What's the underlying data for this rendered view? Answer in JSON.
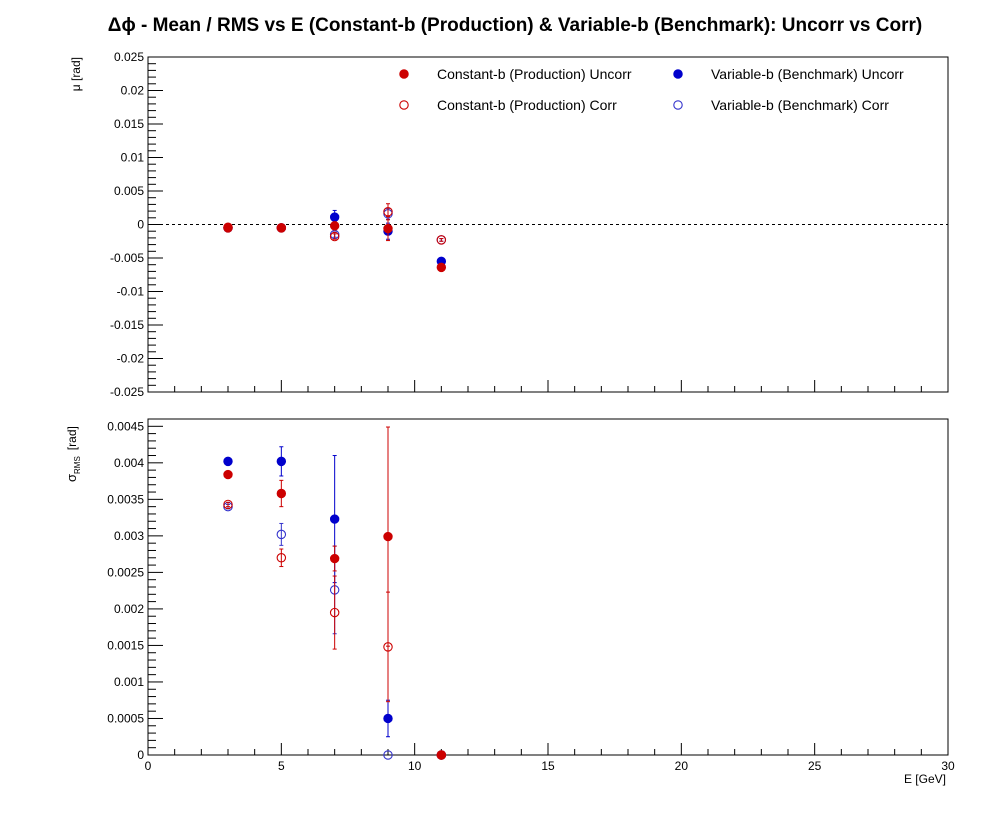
{
  "title": "Δϕ  -  Mean / RMS vs E  (Constant-b (Production) & Variable-b (Benchmark): Uncorr vs Corr)",
  "colors": {
    "red": "#cc0000",
    "blue": "#0000cc",
    "corr_blue": "#3333cc"
  },
  "chart_data": [
    {
      "type": "scatter",
      "panel": "top",
      "ylabel": "μ  [rad]",
      "xlim": [
        0,
        30
      ],
      "ylim": [
        -0.025,
        0.025
      ],
      "ytick_labels": [
        "-0.025",
        "-0.02",
        "-0.015",
        "-0.01",
        "-0.005",
        "0",
        "0.005",
        "0.01",
        "0.015",
        "0.02",
        "0.025"
      ],
      "reference_line_y": 0,
      "legend": {
        "placement": "top",
        "entries": [
          {
            "label": "Constant-b (Production) Uncorr",
            "color": "#cc0000",
            "filled": true
          },
          {
            "label": "Variable-b (Benchmark) Uncorr",
            "color": "#0000cc",
            "filled": true
          },
          {
            "label": "Constant-b (Production) Corr",
            "color": "#cc0000",
            "filled": false
          },
          {
            "label": "Variable-b (Benchmark) Corr",
            "color": "#3333cc",
            "filled": false
          }
        ]
      },
      "series": [
        {
          "name": "Variable-b (Benchmark) Uncorr",
          "color": "#0000cc",
          "filled": true,
          "x": [
            3,
            5,
            7,
            9,
            11
          ],
          "y": [
            -0.0005,
            -0.0005,
            0.0011,
            -0.001,
            -0.0055
          ],
          "yerr": [
            0.0003,
            0.0002,
            0.001,
            0.0012,
            0.0002
          ]
        },
        {
          "name": "Variable-b (Benchmark) Corr",
          "color": "#3333cc",
          "filled": false,
          "x": [
            3,
            5,
            7,
            9,
            11
          ],
          "y": [
            -0.0005,
            -0.0005,
            -0.0015,
            0.0016,
            -0.0023
          ],
          "yerr": [
            0.0002,
            0.0002,
            0.0004,
            0.0008,
            0.0002
          ]
        },
        {
          "name": "Constant-b (Production) Uncorr",
          "color": "#cc0000",
          "filled": true,
          "x": [
            3,
            5,
            7,
            9,
            11
          ],
          "y": [
            -0.0004,
            -0.0005,
            -0.0002,
            -0.0006,
            -0.0064
          ],
          "yerr": [
            0.0002,
            0.0002,
            0.0006,
            0.0018,
            0.0002
          ]
        },
        {
          "name": "Constant-b (Production) Corr",
          "color": "#cc0000",
          "filled": false,
          "x": [
            3,
            5,
            7,
            9,
            11
          ],
          "y": [
            -0.0005,
            -0.0005,
            -0.0018,
            0.0019,
            -0.0023
          ],
          "yerr": [
            0.0002,
            0.0002,
            0.0004,
            0.0012,
            0.0002
          ]
        }
      ]
    },
    {
      "type": "scatter",
      "panel": "bottom",
      "ylabel": "σ",
      "ylabel_sub": "RMS",
      "ylabel_unit": "[rad]",
      "xlabel": "E  [GeV]",
      "xlim": [
        0,
        30
      ],
      "ylim": [
        0,
        0.0046
      ],
      "xtick_labels": [
        "0",
        "5",
        "10",
        "15",
        "20",
        "25",
        "30"
      ],
      "ytick_labels": [
        "0",
        "0.0005",
        "0.001",
        "0.0015",
        "0.002",
        "0.0025",
        "0.003",
        "0.0035",
        "0.004",
        "0.0045"
      ],
      "series": [
        {
          "name": "Variable-b (Benchmark) Uncorr",
          "color": "#0000cc",
          "filled": true,
          "x": [
            3,
            5,
            7,
            9,
            11
          ],
          "y": [
            0.00402,
            0.00402,
            0.00323,
            0.0005,
            0.0
          ],
          "yerr": [
            3e-05,
            0.0002,
            0.00087,
            0.00025,
            0.0
          ]
        },
        {
          "name": "Variable-b (Benchmark) Corr",
          "color": "#3333cc",
          "filled": false,
          "x": [
            3,
            5,
            7,
            9,
            11
          ],
          "y": [
            0.0034,
            0.00302,
            0.00226,
            0.0,
            0.0
          ],
          "yerr": [
            3e-05,
            0.00015,
            0.0006,
            0.0,
            0.0
          ]
        },
        {
          "name": "Constant-b (Production) Uncorr",
          "color": "#cc0000",
          "filled": true,
          "x": [
            3,
            5,
            7,
            9,
            11
          ],
          "y": [
            0.00384,
            0.00358,
            0.00269,
            0.00299,
            0.0
          ],
          "yerr": [
            3e-05,
            0.00018,
            0.00017,
            0.0015,
            0.0
          ]
        },
        {
          "name": "Constant-b (Production) Corr",
          "color": "#cc0000",
          "filled": false,
          "x": [
            3,
            5,
            7,
            9,
            11
          ],
          "y": [
            0.00343,
            0.0027,
            0.00195,
            0.00148,
            0.0
          ],
          "yerr": [
            3e-05,
            0.00012,
            0.0005,
            0.00075,
            0.0
          ]
        }
      ]
    }
  ]
}
